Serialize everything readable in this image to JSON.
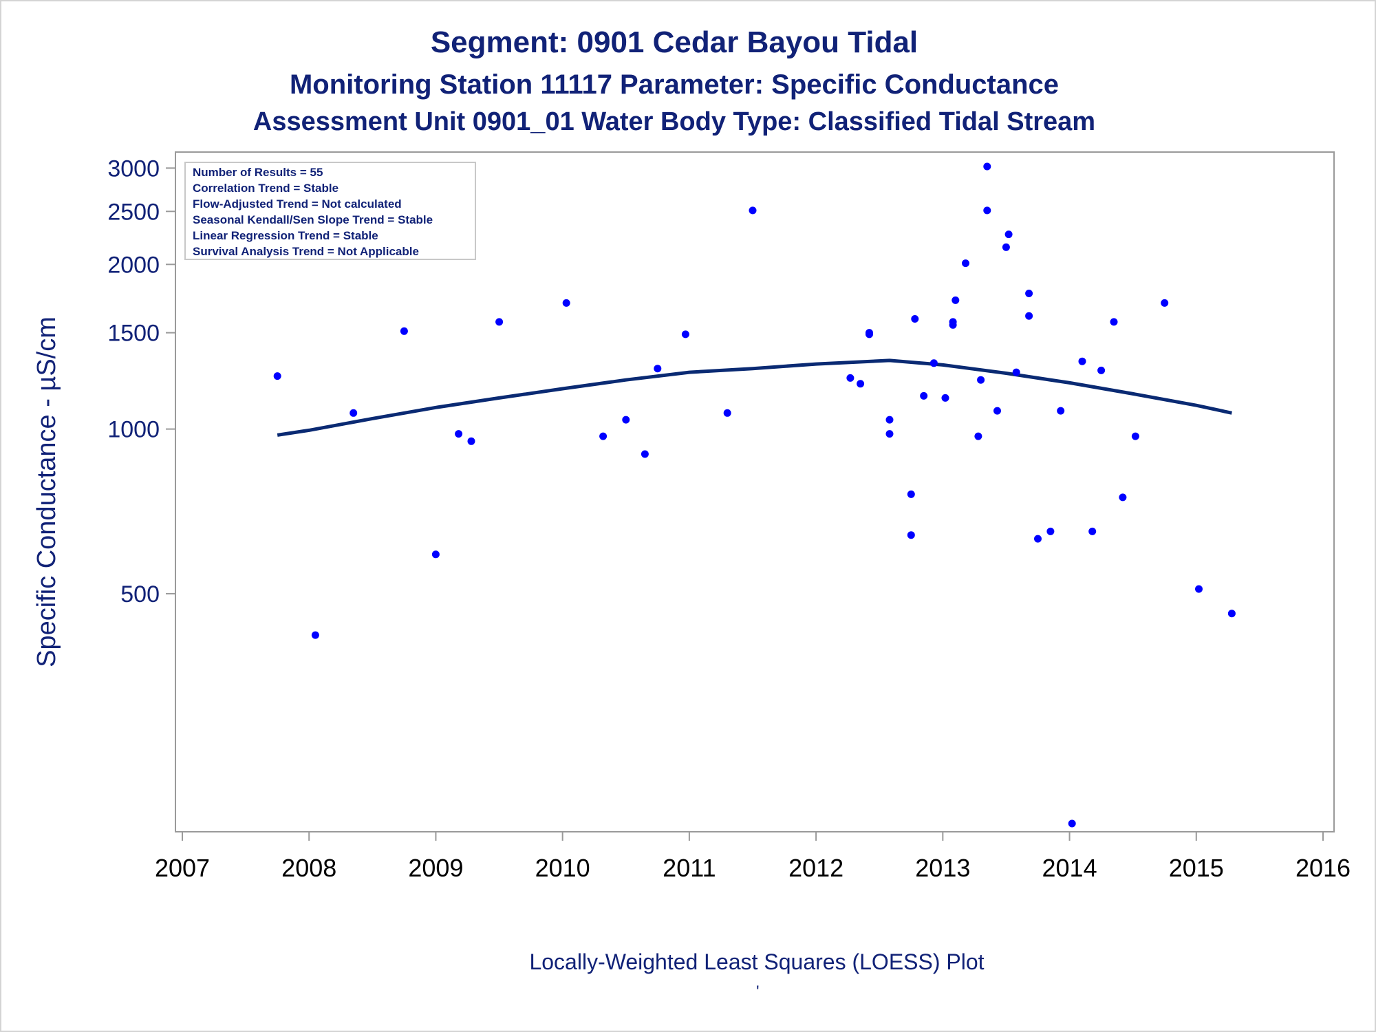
{
  "titles": {
    "line1": "Segment: 0901  Cedar Bayou Tidal",
    "line2": "Monitoring Station 11117 Parameter: Specific Conductance",
    "line3": "Assessment Unit 0901_01   Water Body Type: Classified Tidal Stream"
  },
  "footnote": "Locally-Weighted Least Squares (LOESS) Plot",
  "footnote_mark": "'",
  "colors": {
    "text": "#112277",
    "points": "#0000ff",
    "loess": "#0a2a73",
    "axis": "#9a9a9a"
  },
  "chart_data": {
    "type": "scatter",
    "title": "Segment: 0901  Cedar Bayou Tidal",
    "ylabel": "Specific Conductance -  µS/cm",
    "xlabel": "",
    "y_scale": "log",
    "xlim": [
      2007,
      2016
    ],
    "ylim": [
      190,
      3100
    ],
    "x_ticks": [
      2007,
      2008,
      2009,
      2010,
      2011,
      2012,
      2013,
      2014,
      2015,
      2016
    ],
    "x_tick_labels": [
      "2007",
      "2008",
      "2009",
      "2010",
      "2011",
      "2012",
      "2013",
      "2014",
      "2015",
      "2016"
    ],
    "y_ticks": [
      500,
      1000,
      1500,
      2000,
      2500,
      3000
    ],
    "y_tick_labels": [
      "500",
      "1000",
      "1500",
      "2000",
      "2500",
      "3000"
    ],
    "grid": false,
    "legend": {
      "placement": "top-left",
      "entries": [
        "Number of Results = 55",
        "Correlation Trend = Stable",
        "Flow-Adjusted Trend = Not calculated",
        "Seasonal Kendall/Sen Slope Trend = Stable",
        "Linear Regression Trend = Stable",
        "Survival Analysis Trend = Not Applicable"
      ]
    },
    "series": [
      {
        "kind": "scatter",
        "points": [
          [
            2007.75,
            1250
          ],
          [
            2008.05,
            420
          ],
          [
            2008.35,
            1070
          ],
          [
            2008.75,
            1510
          ],
          [
            2009.0,
            590
          ],
          [
            2009.18,
            980
          ],
          [
            2009.28,
            950
          ],
          [
            2009.5,
            1570
          ],
          [
            2010.03,
            1700
          ],
          [
            2010.32,
            970
          ],
          [
            2010.5,
            1040
          ],
          [
            2010.65,
            900
          ],
          [
            2010.75,
            1290
          ],
          [
            2010.97,
            1490
          ],
          [
            2011.3,
            1070
          ],
          [
            2011.5,
            2510
          ],
          [
            2012.27,
            1240
          ],
          [
            2012.35,
            1210
          ],
          [
            2012.42,
            1490
          ],
          [
            2012.42,
            1500
          ],
          [
            2012.58,
            1040
          ],
          [
            2012.58,
            980
          ],
          [
            2012.75,
            760
          ],
          [
            2012.75,
            640
          ],
          [
            2012.78,
            1590
          ],
          [
            2012.85,
            1150
          ],
          [
            2012.93,
            1320
          ],
          [
            2013.02,
            1140
          ],
          [
            2013.08,
            1570
          ],
          [
            2013.08,
            1550
          ],
          [
            2013.1,
            1720
          ],
          [
            2013.18,
            2010
          ],
          [
            2013.28,
            970
          ],
          [
            2013.3,
            1230
          ],
          [
            2013.35,
            3020
          ],
          [
            2013.35,
            2510
          ],
          [
            2013.43,
            1080
          ],
          [
            2013.5,
            2150
          ],
          [
            2013.52,
            2270
          ],
          [
            2013.58,
            1270
          ],
          [
            2013.68,
            1770
          ],
          [
            2013.68,
            1610
          ],
          [
            2013.75,
            630
          ],
          [
            2013.85,
            650
          ],
          [
            2013.93,
            1080
          ],
          [
            2014.02,
            190
          ],
          [
            2014.1,
            1330
          ],
          [
            2014.18,
            650
          ],
          [
            2014.25,
            1280
          ],
          [
            2014.35,
            1570
          ],
          [
            2014.42,
            750
          ],
          [
            2014.52,
            970
          ],
          [
            2014.75,
            1700
          ],
          [
            2015.02,
            510
          ],
          [
            2015.28,
            460
          ]
        ]
      },
      {
        "kind": "line",
        "points": [
          [
            2007.75,
            975
          ],
          [
            2008.0,
            995
          ],
          [
            2008.5,
            1045
          ],
          [
            2009.0,
            1095
          ],
          [
            2009.5,
            1140
          ],
          [
            2010.0,
            1185
          ],
          [
            2010.5,
            1230
          ],
          [
            2011.0,
            1270
          ],
          [
            2011.5,
            1290
          ],
          [
            2012.0,
            1315
          ],
          [
            2012.58,
            1335
          ],
          [
            2013.0,
            1310
          ],
          [
            2013.5,
            1265
          ],
          [
            2014.0,
            1215
          ],
          [
            2014.5,
            1160
          ],
          [
            2015.0,
            1105
          ],
          [
            2015.28,
            1070
          ]
        ]
      }
    ]
  }
}
